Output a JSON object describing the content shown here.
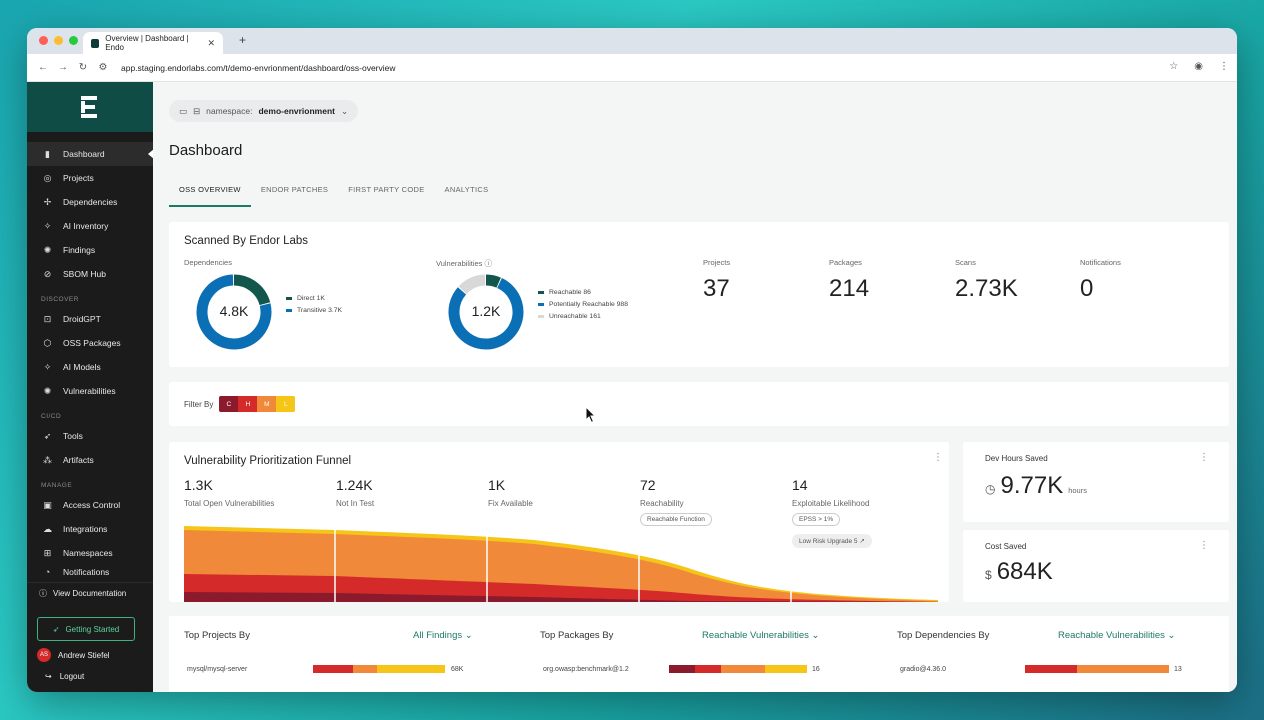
{
  "browser": {
    "tab_title": "Overview | Dashboard | Endo",
    "url": "app.staging.endorlabs.com/t/demo-envrionment/dashboard/oss-overview"
  },
  "sidebar": {
    "items": [
      {
        "label": "Dashboard",
        "icon": "bar-chart-icon"
      },
      {
        "label": "Projects",
        "icon": "projects-icon"
      },
      {
        "label": "Dependencies",
        "icon": "dependencies-icon"
      },
      {
        "label": "AI Inventory",
        "icon": "ai-inventory-icon"
      },
      {
        "label": "Findings",
        "icon": "findings-icon"
      },
      {
        "label": "SBOM Hub",
        "icon": "sbom-icon"
      }
    ],
    "discover_label": "DISCOVER",
    "discover_items": [
      {
        "label": "DroidGPT"
      },
      {
        "label": "OSS Packages"
      },
      {
        "label": "AI Models"
      },
      {
        "label": "Vulnerabilities"
      }
    ],
    "cicd_label": "CI/CD",
    "cicd_items": [
      {
        "label": "Tools"
      },
      {
        "label": "Artifacts"
      }
    ],
    "manage_label": "MANAGE",
    "manage_items": [
      {
        "label": "Access Control"
      },
      {
        "label": "Integrations"
      },
      {
        "label": "Namespaces"
      },
      {
        "label": "Notifications"
      }
    ],
    "view_documentation": "View Documentation",
    "getting_started": "Getting Started",
    "user_initials": "AS",
    "user_name": "Andrew Stiefel",
    "logout": "Logout"
  },
  "namespace": {
    "prefix": "namespace:",
    "value": "demo-envrionment"
  },
  "page_title": "Dashboard",
  "tabs": [
    {
      "label": "OSS OVERVIEW",
      "active": true
    },
    {
      "label": "ENDOR PATCHES"
    },
    {
      "label": "FIRST PARTY CODE"
    },
    {
      "label": "ANALYTICS"
    }
  ],
  "scanned": {
    "title": "Scanned By Endor Labs",
    "dependencies": {
      "label": "Dependencies",
      "center": "4.8K",
      "legend": [
        {
          "label": "Direct 1K",
          "value": 1000,
          "color": "#12564c"
        },
        {
          "label": "Transitive 3.7K",
          "value": 3700,
          "color": "#0a6fb5"
        }
      ]
    },
    "vulnerabilities": {
      "label": "Vulnerabilities",
      "center": "1.2K",
      "legend": [
        {
          "label": "Reachable 86",
          "value": 86,
          "color": "#12564c"
        },
        {
          "label": "Potentially Reachable 988",
          "value": 988,
          "color": "#0a6fb5"
        },
        {
          "label": "Unreachable 161",
          "value": 161,
          "color": "#d8d8d8"
        }
      ]
    },
    "stats": [
      {
        "label": "Projects",
        "value": "37"
      },
      {
        "label": "Packages",
        "value": "214"
      },
      {
        "label": "Scans",
        "value": "2.73K"
      },
      {
        "label": "Notifications",
        "value": "0"
      }
    ]
  },
  "filter": {
    "label": "Filter By",
    "chips": [
      {
        "label": "C",
        "color": "#8b1a2c"
      },
      {
        "label": "H",
        "color": "#d42a2a"
      },
      {
        "label": "M",
        "color": "#f08a3a"
      },
      {
        "label": "L",
        "color": "#f5c518"
      }
    ]
  },
  "funnel": {
    "title": "Vulnerability Prioritization Funnel",
    "stages": [
      {
        "value": "1.3K",
        "label": "Total Open Vulnerabilities"
      },
      {
        "value": "1.24K",
        "label": "Not In Test"
      },
      {
        "value": "1K",
        "label": "Fix Available"
      },
      {
        "value": "72",
        "label": "Reachability",
        "badge": "Reachable Function"
      },
      {
        "value": "14",
        "label": "Exploitable Likelihood",
        "badge": "EPSS > 1%",
        "badge2": "Low Risk Upgrade 5"
      }
    ]
  },
  "dev_hours": {
    "label": "Dev Hours Saved",
    "value": "9.77K",
    "unit": "hours"
  },
  "cost_saved": {
    "label": "Cost Saved",
    "value": "684K"
  },
  "bottom": {
    "projects": {
      "title": "Top Projects By",
      "select": "All Findings",
      "row_label": "mysql/mysql-server",
      "row_value": "68K"
    },
    "packages": {
      "title": "Top Packages By",
      "select": "Reachable Vulnerabilities",
      "row_label": "org.owasp:benchmark@1.2",
      "row_value": "16"
    },
    "dependencies": {
      "title": "Top Dependencies By",
      "select": "Reachable Vulnerabilities",
      "row_label": "gradio@4.36.0",
      "row_value": "13"
    }
  }
}
